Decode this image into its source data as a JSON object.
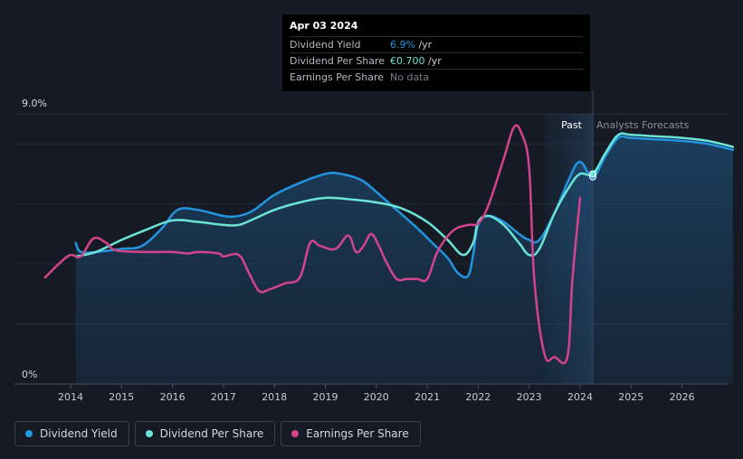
{
  "chart_data": {
    "type": "line",
    "y_axis": {
      "min_label": "0%",
      "max_label": "9.0%",
      "ylim": [
        0,
        9.0
      ]
    },
    "x_ticks": [
      "2014",
      "2015",
      "2016",
      "2017",
      "2018",
      "2019",
      "2020",
      "2021",
      "2022",
      "2023",
      "2024",
      "2025",
      "2026"
    ],
    "regions": {
      "past_label": "Past",
      "forecast_label": "Analysts Forecasts",
      "past_start": 2023.3,
      "now": 2024.25
    },
    "colors": {
      "dividend_yield": "#2394e0",
      "dividend_per_share": "#6be3d6",
      "earnings_per_share": "#d4448d"
    },
    "series": [
      {
        "name": "Dividend Yield",
        "key": "dividend_yield",
        "points": [
          [
            2014.1,
            4.7
          ],
          [
            2014.2,
            4.4
          ],
          [
            2014.5,
            4.4
          ],
          [
            2015.0,
            4.5
          ],
          [
            2015.4,
            4.6
          ],
          [
            2015.8,
            5.2
          ],
          [
            2016.1,
            5.8
          ],
          [
            2016.5,
            5.8
          ],
          [
            2017.0,
            5.6
          ],
          [
            2017.3,
            5.6
          ],
          [
            2017.6,
            5.8
          ],
          [
            2018.0,
            6.3
          ],
          [
            2018.5,
            6.7
          ],
          [
            2019.0,
            7.0
          ],
          [
            2019.3,
            7.0
          ],
          [
            2019.7,
            6.8
          ],
          [
            2020.0,
            6.4
          ],
          [
            2020.4,
            5.8
          ],
          [
            2020.8,
            5.2
          ],
          [
            2021.1,
            4.7
          ],
          [
            2021.4,
            4.2
          ],
          [
            2021.6,
            3.7
          ],
          [
            2021.8,
            3.6
          ],
          [
            2021.9,
            4.3
          ],
          [
            2022.0,
            5.3
          ],
          [
            2022.2,
            5.6
          ],
          [
            2022.5,
            5.4
          ],
          [
            2022.8,
            5.0
          ],
          [
            2023.0,
            4.8
          ],
          [
            2023.2,
            4.8
          ],
          [
            2023.5,
            5.7
          ],
          [
            2023.8,
            6.9
          ],
          [
            2024.0,
            7.4
          ],
          [
            2024.25,
            6.9
          ],
          [
            2024.5,
            7.6
          ],
          [
            2024.75,
            8.2
          ],
          [
            2025.0,
            8.2
          ],
          [
            2025.5,
            8.15
          ],
          [
            2026.0,
            8.1
          ],
          [
            2026.5,
            8.0
          ],
          [
            2027.0,
            7.8
          ]
        ]
      },
      {
        "name": "Dividend Per Share",
        "key": "dividend_per_share",
        "points": [
          [
            2014.1,
            4.25
          ],
          [
            2014.5,
            4.4
          ],
          [
            2015.0,
            4.8
          ],
          [
            2015.5,
            5.15
          ],
          [
            2016.0,
            5.45
          ],
          [
            2016.5,
            5.4
          ],
          [
            2017.0,
            5.3
          ],
          [
            2017.3,
            5.3
          ],
          [
            2017.6,
            5.5
          ],
          [
            2018.0,
            5.8
          ],
          [
            2018.5,
            6.05
          ],
          [
            2019.0,
            6.2
          ],
          [
            2019.5,
            6.15
          ],
          [
            2020.0,
            6.05
          ],
          [
            2020.5,
            5.85
          ],
          [
            2021.0,
            5.4
          ],
          [
            2021.4,
            4.8
          ],
          [
            2021.7,
            4.3
          ],
          [
            2021.9,
            4.7
          ],
          [
            2022.0,
            5.4
          ],
          [
            2022.2,
            5.6
          ],
          [
            2022.5,
            5.3
          ],
          [
            2022.8,
            4.7
          ],
          [
            2023.0,
            4.3
          ],
          [
            2023.2,
            4.5
          ],
          [
            2023.5,
            5.7
          ],
          [
            2023.8,
            6.6
          ],
          [
            2024.0,
            7.0
          ],
          [
            2024.25,
            7.0
          ],
          [
            2024.5,
            7.7
          ],
          [
            2024.75,
            8.3
          ],
          [
            2025.0,
            8.3
          ],
          [
            2025.5,
            8.25
          ],
          [
            2026.0,
            8.2
          ],
          [
            2026.5,
            8.1
          ],
          [
            2027.0,
            7.9
          ]
        ]
      },
      {
        "name": "Earnings Per Share",
        "key": "earnings_per_share",
        "points": [
          [
            2013.5,
            3.55
          ],
          [
            2013.8,
            4.05
          ],
          [
            2014.0,
            4.3
          ],
          [
            2014.2,
            4.25
          ],
          [
            2014.45,
            4.85
          ],
          [
            2014.7,
            4.7
          ],
          [
            2014.9,
            4.45
          ],
          [
            2015.5,
            4.4
          ],
          [
            2016.0,
            4.4
          ],
          [
            2016.3,
            4.35
          ],
          [
            2016.5,
            4.4
          ],
          [
            2016.9,
            4.35
          ],
          [
            2017.0,
            4.25
          ],
          [
            2017.3,
            4.3
          ],
          [
            2017.5,
            3.7
          ],
          [
            2017.7,
            3.1
          ],
          [
            2017.9,
            3.15
          ],
          [
            2018.2,
            3.35
          ],
          [
            2018.5,
            3.55
          ],
          [
            2018.7,
            4.7
          ],
          [
            2018.9,
            4.6
          ],
          [
            2019.2,
            4.5
          ],
          [
            2019.45,
            4.95
          ],
          [
            2019.6,
            4.4
          ],
          [
            2019.75,
            4.6
          ],
          [
            2019.9,
            5.0
          ],
          [
            2020.05,
            4.6
          ],
          [
            2020.2,
            4.05
          ],
          [
            2020.4,
            3.5
          ],
          [
            2020.6,
            3.5
          ],
          [
            2020.8,
            3.5
          ],
          [
            2021.0,
            3.5
          ],
          [
            2021.2,
            4.4
          ],
          [
            2021.5,
            5.1
          ],
          [
            2021.8,
            5.3
          ],
          [
            2022.0,
            5.35
          ],
          [
            2022.2,
            5.95
          ],
          [
            2022.5,
            7.5
          ],
          [
            2022.7,
            8.55
          ],
          [
            2022.85,
            8.35
          ],
          [
            2023.0,
            7.2
          ],
          [
            2023.1,
            3.5
          ],
          [
            2023.3,
            1.0
          ],
          [
            2023.5,
            0.9
          ],
          [
            2023.75,
            0.9
          ],
          [
            2023.85,
            3.5
          ],
          [
            2024.0,
            6.2
          ]
        ]
      }
    ]
  },
  "tooltip": {
    "date": "Apr 03 2024",
    "rows": [
      {
        "label": "Dividend Yield",
        "value": "6.9%",
        "unit": " /yr",
        "color": "#2394e0"
      },
      {
        "label": "Dividend Per Share",
        "value": "€0.700",
        "unit": " /yr",
        "color": "#6be3d6"
      },
      {
        "label": "Earnings Per Share",
        "value": "No data",
        "unit": "",
        "color": "#7a7e86"
      }
    ]
  },
  "legend": [
    {
      "label": "Dividend Yield",
      "color": "#2394e0"
    },
    {
      "label": "Dividend Per Share",
      "color": "#6be3d6"
    },
    {
      "label": "Earnings Per Share",
      "color": "#d4448d"
    }
  ]
}
